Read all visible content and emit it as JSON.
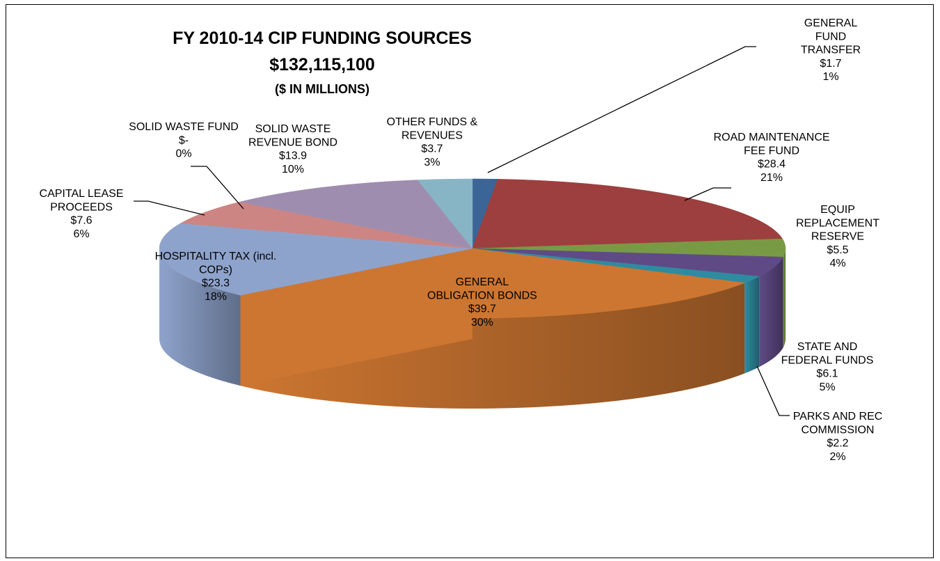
{
  "chart_data": {
    "type": "pie",
    "style": "3d",
    "title": "FY 2010-14 CIP FUNDING SOURCES",
    "subtitle": "$132,115,100",
    "units_note": "($ IN MILLIONS)",
    "slices": [
      {
        "lines": [
          "GENERAL",
          "FUND",
          "TRANSFER"
        ],
        "value": 1.7,
        "value_label": "$1.7",
        "percent_label": "1%",
        "color": "#3a6596"
      },
      {
        "lines": [
          "ROAD MAINTENANCE",
          "FEE FUND"
        ],
        "value": 28.4,
        "value_label": "$28.4",
        "percent_label": "21%",
        "color": "#9c3f3e"
      },
      {
        "lines": [
          "EQUIP",
          "REPLACEMENT",
          "RESERVE"
        ],
        "value": 5.5,
        "value_label": "$5.5",
        "percent_label": "4%",
        "color": "#799a44"
      },
      {
        "lines": [
          "STATE AND",
          "FEDERAL FUNDS"
        ],
        "value": 6.1,
        "value_label": "$6.1",
        "percent_label": "5%",
        "color": "#5f4a85"
      },
      {
        "lines": [
          "PARKS AND REC",
          "COMMISSION"
        ],
        "value": 2.2,
        "value_label": "$2.2",
        "percent_label": "2%",
        "color": "#2f8ba0"
      },
      {
        "lines": [
          "GENERAL",
          "OBLIGATION BONDS"
        ],
        "value": 39.7,
        "value_label": "$39.7",
        "percent_label": "30%",
        "color": "#cd7631"
      },
      {
        "lines": [
          "HOSPITALITY TAX (incl.",
          "COPs)"
        ],
        "value": 23.3,
        "value_label": "$23.3",
        "percent_label": "18%",
        "color": "#8ea3cc"
      },
      {
        "lines": [
          "CAPITAL LEASE",
          "PROCEEDS"
        ],
        "value": 7.6,
        "value_label": "$7.6",
        "percent_label": "6%",
        "color": "#cc8583"
      },
      {
        "lines": [
          "SOLID WASTE  FUND"
        ],
        "value": 0,
        "value_label": "$-",
        "percent_label": "0%",
        "color": "#a8b98a"
      },
      {
        "lines": [
          "SOLID WASTE",
          "REVENUE BOND"
        ],
        "value": 13.9,
        "value_label": "$13.9",
        "percent_label": "10%",
        "color": "#9f8daf"
      },
      {
        "lines": [
          "OTHER FUNDS &",
          "REVENUES"
        ],
        "value": 3.7,
        "value_label": "$3.7",
        "percent_label": "3%",
        "color": "#87b5c6"
      }
    ]
  }
}
